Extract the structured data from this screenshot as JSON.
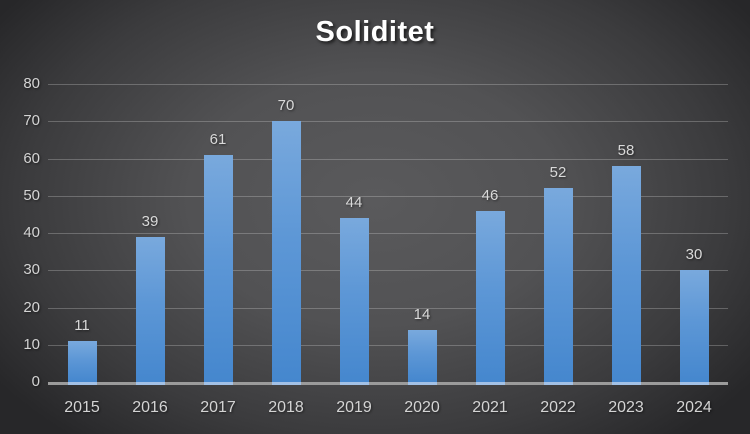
{
  "chart_data": {
    "type": "bar",
    "title": "Soliditet",
    "categories": [
      "2015",
      "2016",
      "2017",
      "2018",
      "2019",
      "2020",
      "2021",
      "2022",
      "2023",
      "2024"
    ],
    "values": [
      11,
      39,
      61,
      70,
      44,
      14,
      46,
      52,
      58,
      30
    ],
    "xlabel": "",
    "ylabel": "",
    "ylim": [
      0,
      80
    ],
    "yticks": [
      0,
      10,
      20,
      30,
      40,
      50,
      60,
      70,
      80
    ],
    "grid": true,
    "legend": false,
    "data_labels": true,
    "colors": {
      "bar_gradient_top": "#79a9dd",
      "bar_gradient_bottom": "#4587ce",
      "bar_base_highlight": "#a3c1e6",
      "background_center": "#5a5a5c",
      "background_edge": "#272729",
      "gridline": "rgba(222,222,222,0.28)",
      "axis_line": "#9b9b9b",
      "tick_label": "#d4d4d4",
      "data_label": "#d9d9d9",
      "title": "#ffffff"
    }
  }
}
